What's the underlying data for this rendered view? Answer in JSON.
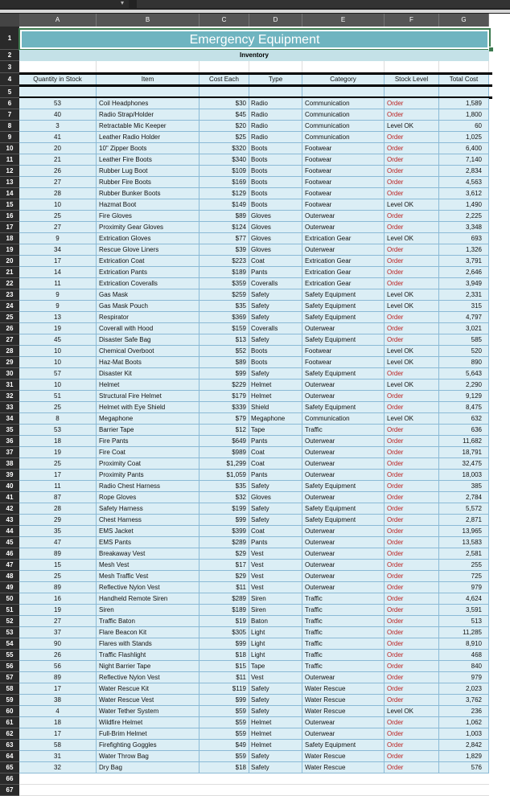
{
  "sheet": {
    "title": "Emergency Equipment",
    "subtitle": "Inventory",
    "columns": [
      "A",
      "B",
      "C",
      "D",
      "E",
      "F",
      "G"
    ],
    "headers": [
      "Quantity in Stock",
      "Item",
      "Cost Each",
      "Type",
      "Category",
      "Stock Level",
      "Total Cost"
    ],
    "rows": [
      [
        "53",
        "Coil Headphones",
        "$30",
        "Radio",
        "Communication",
        "Order",
        "1,589"
      ],
      [
        "40",
        "Radio Strap/Holder",
        "$45",
        "Radio",
        "Communication",
        "Order",
        "1,800"
      ],
      [
        "3",
        "Retractable Mic Keeper",
        "$20",
        "Radio",
        "Communication",
        "Level OK",
        "60"
      ],
      [
        "41",
        "Leather Radio Holder",
        "$25",
        "Radio",
        "Communication",
        "Order",
        "1,025"
      ],
      [
        "20",
        "10\" Zipper Boots",
        "$320",
        "Boots",
        "Footwear",
        "Order",
        "6,400"
      ],
      [
        "21",
        "Leather Fire Boots",
        "$340",
        "Boots",
        "Footwear",
        "Order",
        "7,140"
      ],
      [
        "26",
        "Rubber Lug Boot",
        "$109",
        "Boots",
        "Footwear",
        "Order",
        "2,834"
      ],
      [
        "27",
        "Rubber Fire Boots",
        "$169",
        "Boots",
        "Footwear",
        "Order",
        "4,563"
      ],
      [
        "28",
        "Rubber Bunker Boots",
        "$129",
        "Boots",
        "Footwear",
        "Order",
        "3,612"
      ],
      [
        "10",
        "Hazmat Boot",
        "$149",
        "Boots",
        "Footwear",
        "Level OK",
        "1,490"
      ],
      [
        "25",
        "Fire Gloves",
        "$89",
        "Gloves",
        "Outerwear",
        "Order",
        "2,225"
      ],
      [
        "27",
        "Proximity Gear Gloves",
        "$124",
        "Gloves",
        "Outerwear",
        "Order",
        "3,348"
      ],
      [
        "9",
        "Extrication Gloves",
        "$77",
        "Gloves",
        "Extrication Gear",
        "Level OK",
        "693"
      ],
      [
        "34",
        "Rescue Glove Liners",
        "$39",
        "Gloves",
        "Outerwear",
        "Order",
        "1,326"
      ],
      [
        "17",
        "Extrication Coat",
        "$223",
        "Coat",
        "Extrication Gear",
        "Order",
        "3,791"
      ],
      [
        "14",
        "Extrication Pants",
        "$189",
        "Pants",
        "Extrication Gear",
        "Order",
        "2,646"
      ],
      [
        "11",
        "Extrication Coveralls",
        "$359",
        "Coveralls",
        "Extrication Gear",
        "Order",
        "3,949"
      ],
      [
        "9",
        "Gas Mask",
        "$259",
        "Safety",
        "Safety Equipment",
        "Level OK",
        "2,331"
      ],
      [
        "9",
        "Gas Mask Pouch",
        "$35",
        "Safety",
        "Safety Equipment",
        "Level OK",
        "315"
      ],
      [
        "13",
        "Respirator",
        "$369",
        "Safety",
        "Safety Equipment",
        "Order",
        "4,797"
      ],
      [
        "19",
        "Coverall with Hood",
        "$159",
        "Coveralls",
        "Outerwear",
        "Order",
        "3,021"
      ],
      [
        "45",
        "Disaster Safe Bag",
        "$13",
        "Safety",
        "Safety Equipment",
        "Order",
        "585"
      ],
      [
        "10",
        "Chemical Overboot",
        "$52",
        "Boots",
        "Footwear",
        "Level OK",
        "520"
      ],
      [
        "10",
        "Haz-Mat Boots",
        "$89",
        "Boots",
        "Footwear",
        "Level OK",
        "890"
      ],
      [
        "57",
        "Disaster Kit",
        "$99",
        "Safety",
        "Safety Equipment",
        "Order",
        "5,643"
      ],
      [
        "10",
        "Helmet",
        "$229",
        "Helmet",
        "Outerwear",
        "Level OK",
        "2,290"
      ],
      [
        "51",
        "Structural Fire Helmet",
        "$179",
        "Helmet",
        "Outerwear",
        "Order",
        "9,129"
      ],
      [
        "25",
        "Helmet with Eye Shield",
        "$339",
        "Shield",
        "Safety Equipment",
        "Order",
        "8,475"
      ],
      [
        "8",
        "Megaphone",
        "$79",
        "Megaphone",
        "Communication",
        "Level OK",
        "632"
      ],
      [
        "53",
        "Barrier Tape",
        "$12",
        "Tape",
        "Traffic",
        "Order",
        "636"
      ],
      [
        "18",
        "Fire Pants",
        "$649",
        "Pants",
        "Outerwear",
        "Order",
        "11,682"
      ],
      [
        "19",
        "Fire Coat",
        "$989",
        "Coat",
        "Outerwear",
        "Order",
        "18,791"
      ],
      [
        "25",
        "Proximity Coat",
        "$1,299",
        "Coat",
        "Outerwear",
        "Order",
        "32,475"
      ],
      [
        "17",
        "Proximity Pants",
        "$1,059",
        "Pants",
        "Outerwear",
        "Order",
        "18,003"
      ],
      [
        "11",
        "Radio Chest Harness",
        "$35",
        "Safety",
        "Safety Equipment",
        "Order",
        "385"
      ],
      [
        "87",
        "Rope Gloves",
        "$32",
        "Gloves",
        "Outerwear",
        "Order",
        "2,784"
      ],
      [
        "28",
        "Safety Harness",
        "$199",
        "Safety",
        "Safety Equipment",
        "Order",
        "5,572"
      ],
      [
        "29",
        "Chest Harness",
        "$99",
        "Safety",
        "Safety Equipment",
        "Order",
        "2,871"
      ],
      [
        "35",
        "EMS Jacket",
        "$399",
        "Coat",
        "Outerwear",
        "Order",
        "13,965"
      ],
      [
        "47",
        "EMS Pants",
        "$289",
        "Pants",
        "Outerwear",
        "Order",
        "13,583"
      ],
      [
        "89",
        "Breakaway Vest",
        "$29",
        "Vest",
        "Outerwear",
        "Order",
        "2,581"
      ],
      [
        "15",
        "Mesh Vest",
        "$17",
        "Vest",
        "Outerwear",
        "Order",
        "255"
      ],
      [
        "25",
        "Mesh Traffic Vest",
        "$29",
        "Vest",
        "Outerwear",
        "Order",
        "725"
      ],
      [
        "89",
        "Reflective Nylon Vest",
        "$11",
        "Vest",
        "Outerwear",
        "Order",
        "979"
      ],
      [
        "16",
        "Handheld Remote Siren",
        "$289",
        "Siren",
        "Traffic",
        "Order",
        "4,624"
      ],
      [
        "19",
        "Siren",
        "$189",
        "Siren",
        "Traffic",
        "Order",
        "3,591"
      ],
      [
        "27",
        "Traffic Baton",
        "$19",
        "Baton",
        "Traffic",
        "Order",
        "513"
      ],
      [
        "37",
        "Flare Beacon Kit",
        "$305",
        "Light",
        "Traffic",
        "Order",
        "11,285"
      ],
      [
        "90",
        "Flares with Stands",
        "$99",
        "Light",
        "Traffic",
        "Order",
        "8,910"
      ],
      [
        "26",
        "Traffic Flashlight",
        "$18",
        "Light",
        "Traffic",
        "Order",
        "468"
      ],
      [
        "56",
        "Night Barrier Tape",
        "$15",
        "Tape",
        "Traffic",
        "Order",
        "840"
      ],
      [
        "89",
        "Reflective Nylon Vest",
        "$11",
        "Vest",
        "Outerwear",
        "Order",
        "979"
      ],
      [
        "17",
        "Water Rescue Kit",
        "$119",
        "Safety",
        "Water Rescue",
        "Order",
        "2,023"
      ],
      [
        "38",
        "Water Rescue Vest",
        "$99",
        "Safety",
        "Water Rescue",
        "Order",
        "3,762"
      ],
      [
        "4",
        "Water Tether System",
        "$59",
        "Safety",
        "Water Rescue",
        "Level OK",
        "236"
      ],
      [
        "18",
        "Wildfire Helmet",
        "$59",
        "Helmet",
        "Outerwear",
        "Order",
        "1,062"
      ],
      [
        "17",
        "Full-Brim Helmet",
        "$59",
        "Helmet",
        "Outerwear",
        "Order",
        "1,003"
      ],
      [
        "58",
        "Firefighting Goggles",
        "$49",
        "Helmet",
        "Safety Equipment",
        "Order",
        "2,842"
      ],
      [
        "31",
        "Water Throw Bag",
        "$59",
        "Safety",
        "Water Rescue",
        "Order",
        "1,829"
      ],
      [
        "32",
        "Dry Bag",
        "$18",
        "Safety",
        "Water Rescue",
        "Order",
        "576"
      ]
    ]
  },
  "colors": {
    "title_bg": "#6fb4c0",
    "subtitle_bg": "#c4e1e7",
    "cell_bg": "#dbeef5",
    "order_text": "#b22222",
    "selection": "#3c7a4f"
  }
}
